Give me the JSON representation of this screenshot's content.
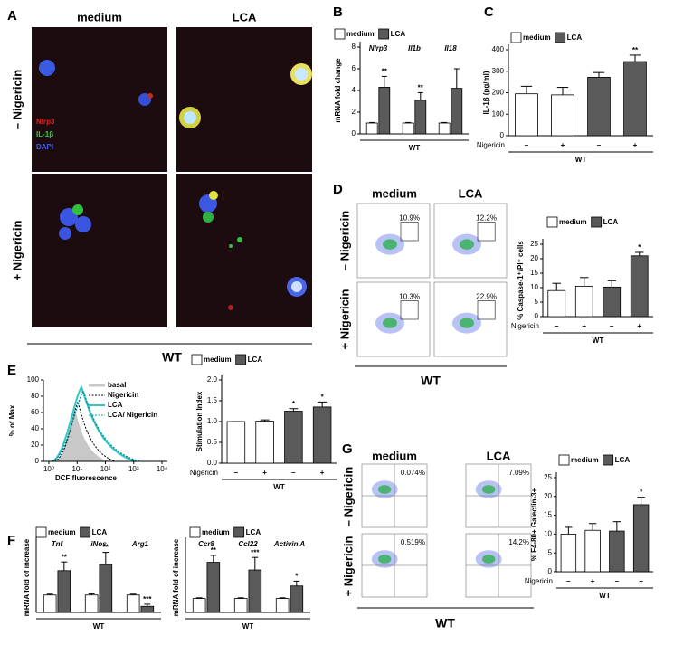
{
  "panel_labels": [
    "A",
    "B",
    "C",
    "D",
    "E",
    "F",
    "G"
  ],
  "panel_a": {
    "columns": [
      "medium",
      "LCA"
    ],
    "rows": [
      "– Nigericin",
      "+ Nigericin"
    ],
    "stains": [
      "Nlrp3",
      "IL-1β",
      "DAPI"
    ],
    "group": "WT"
  },
  "panel_d_flow": {
    "columns": [
      "medium",
      "LCA"
    ],
    "rows": [
      "– Nigericin",
      "+ Nigericin"
    ],
    "gates": [
      "10.9%",
      "12.2%",
      "10.3%",
      "22.9%"
    ],
    "group": "WT"
  },
  "panel_e_histogram": {
    "ylabel": "% of Max",
    "xlabel": "DCF fluorescence",
    "ylim": [
      0,
      100
    ],
    "yticks": [
      0,
      20,
      40,
      60,
      80,
      100
    ],
    "xlim": [
      0,
      4
    ],
    "xticks": [
      {
        "value": 0,
        "label": "10⁰"
      },
      {
        "value": 1,
        "label": "10¹"
      },
      {
        "value": 2,
        "label": "10²"
      },
      {
        "value": 3,
        "label": "10³"
      },
      {
        "value": 4,
        "label": "10⁴"
      }
    ],
    "legend": [
      "basal",
      "Nigericin",
      "LCA",
      "LCA/ Nigericin"
    ]
  },
  "panel_g_flow": {
    "columns": [
      "medium",
      "LCA"
    ],
    "rows": [
      "– Nigericin",
      "+ Nigericin"
    ],
    "quadrants": [
      "0.074%",
      "7.09%",
      "0.519%",
      "14.2%"
    ],
    "group": "WT"
  },
  "chart_data": [
    {
      "type": "bar",
      "ylabel": "mRNA fold change",
      "categories": [
        "Nlrp3",
        "Il1b",
        "Il18"
      ],
      "series": [
        {
          "name": "medium",
          "color": "#ffffff",
          "values": [
            1,
            1,
            1
          ],
          "errors": [
            0.05,
            0.05,
            0.05
          ]
        },
        {
          "name": "LCA",
          "color": "#5a5a5a",
          "values": [
            4.3,
            3.1,
            4.2
          ],
          "errors": [
            1.0,
            0.7,
            1.8
          ],
          "annotations": [
            "**",
            "**",
            null
          ]
        }
      ],
      "ylim": [
        0,
        8
      ],
      "yticks": [
        0,
        2,
        4,
        6,
        8
      ],
      "group": "WT"
    },
    {
      "type": "bar",
      "ylabel": "IL-1β (pg/ml)",
      "legend": [
        {
          "name": "medium",
          "color": "#ffffff"
        },
        {
          "name": "LCA",
          "color": "#5a5a5a"
        }
      ],
      "categories": [
        "–",
        "+",
        "–",
        "+"
      ],
      "colors": [
        "#ffffff",
        "#ffffff",
        "#5a5a5a",
        "#5a5a5a"
      ],
      "values": [
        195,
        190,
        272,
        345
      ],
      "errors": [
        35,
        35,
        22,
        30
      ],
      "annotations": [
        null,
        null,
        null,
        "**"
      ],
      "row_label": "Nigericin",
      "ylim": [
        0,
        400
      ],
      "yticks": [
        0,
        100,
        200,
        300,
        400
      ],
      "group": "WT"
    },
    {
      "type": "bar",
      "ylabel": "% Caspase-1⁺/PI⁺ cells",
      "legend": [
        {
          "name": "medium",
          "color": "#ffffff"
        },
        {
          "name": "LCA",
          "color": "#5a5a5a"
        }
      ],
      "categories": [
        "–",
        "+",
        "–",
        "+"
      ],
      "colors": [
        "#ffffff",
        "#ffffff",
        "#5a5a5a",
        "#5a5a5a"
      ],
      "values": [
        9,
        10.5,
        10.2,
        21
      ],
      "errors": [
        2.5,
        3,
        2.2,
        1.2
      ],
      "annotations": [
        null,
        null,
        null,
        "*"
      ],
      "row_label": "Nigericin",
      "ylim": [
        0,
        25
      ],
      "yticks": [
        0,
        5,
        10,
        15,
        20,
        25
      ],
      "group": "WT"
    },
    {
      "type": "bar",
      "ylabel": "Stimulation Index",
      "legend": [
        {
          "name": "medium",
          "color": "#ffffff"
        },
        {
          "name": "LCA",
          "color": "#5a5a5a"
        }
      ],
      "categories": [
        "–",
        "+",
        "–",
        "+"
      ],
      "colors": [
        "#ffffff",
        "#ffffff",
        "#5a5a5a",
        "#5a5a5a"
      ],
      "values": [
        1.0,
        1.01,
        1.25,
        1.35
      ],
      "errors": [
        0,
        0.03,
        0.06,
        0.12
      ],
      "annotations": [
        null,
        null,
        "*",
        "*"
      ],
      "row_label": "Nigericin",
      "ylim": [
        0,
        2
      ],
      "yticks": [
        {
          "value": 0,
          "label": "0.0"
        },
        0.5,
        {
          "value": 1,
          "label": "1.0"
        },
        1.5,
        {
          "value": 2,
          "label": "2.0"
        }
      ],
      "group": "WT"
    },
    {
      "type": "bar",
      "ylabel": "mRNA fold of increase",
      "categories": [
        "Tnf",
        "iNos",
        "Arg1"
      ],
      "series": [
        {
          "name": "medium",
          "color": "#ffffff",
          "values": [
            1,
            1,
            1
          ],
          "errors": [
            0.05,
            0.07,
            0.05
          ]
        },
        {
          "name": "LCA",
          "color": "#5a5a5a",
          "values": [
            2.4,
            2.75,
            0.35
          ],
          "errors": [
            0.5,
            0.7,
            0.12
          ],
          "annotations": [
            "**",
            "**",
            "***"
          ]
        }
      ],
      "ylim": [
        0,
        4
      ],
      "group": "WT"
    },
    {
      "type": "bar",
      "ylabel": "mRNA fold of increase",
      "categories": [
        "Ccr8",
        "Ccl22",
        "Activin A"
      ],
      "series": [
        {
          "name": "medium",
          "color": "#ffffff",
          "values": [
            1,
            1,
            1
          ],
          "errors": [
            0.05,
            0.05,
            0.05
          ]
        },
        {
          "name": "LCA",
          "color": "#5a5a5a",
          "values": [
            3.6,
            3.05,
            1.9
          ],
          "errors": [
            0.5,
            0.9,
            0.35
          ],
          "annotations": [
            "**",
            "***",
            "*"
          ]
        }
      ],
      "ylim": [
        0,
        5
      ],
      "group": "WT"
    },
    {
      "type": "bar",
      "ylabel": "% F4-80+ Galectin-3+",
      "legend": [
        {
          "name": "medium",
          "color": "#ffffff"
        },
        {
          "name": "LCA",
          "color": "#5a5a5a"
        }
      ],
      "categories": [
        "–",
        "+",
        "–",
        "+"
      ],
      "colors": [
        "#ffffff",
        "#ffffff",
        "#5a5a5a",
        "#5a5a5a"
      ],
      "values": [
        10,
        11,
        10.8,
        17.8
      ],
      "errors": [
        1.8,
        1.8,
        2.5,
        2
      ],
      "annotations": [
        null,
        null,
        null,
        "*"
      ],
      "row_label": "Nigericin",
      "ylim": [
        0,
        25
      ],
      "yticks": [
        0,
        5,
        10,
        15,
        20,
        25
      ],
      "group": "WT"
    }
  ]
}
